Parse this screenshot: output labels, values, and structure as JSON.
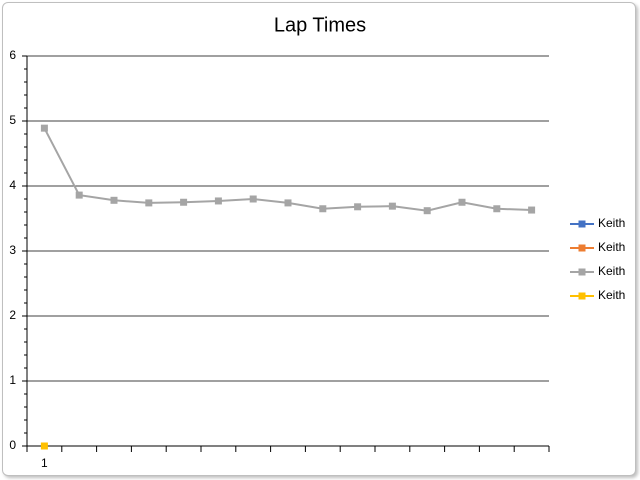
{
  "chart_data": {
    "type": "line",
    "title": "Lap Times",
    "categories": [
      "1",
      null,
      null,
      null,
      null,
      null,
      null,
      null,
      null,
      null,
      null,
      null,
      null,
      null,
      null
    ],
    "series": [
      {
        "name": "Keith",
        "color": "#4472c4",
        "values": [
          null,
          null,
          null,
          null,
          null,
          null,
          null,
          null,
          null,
          null,
          null,
          null,
          null,
          null,
          null
        ]
      },
      {
        "name": "Keith",
        "color": "#ed7d31",
        "values": [
          null,
          null,
          null,
          null,
          null,
          null,
          null,
          null,
          null,
          null,
          null,
          null,
          null,
          null,
          null
        ]
      },
      {
        "name": "Keith",
        "color": "#a5a5a5",
        "values": [
          4.89,
          3.86,
          3.78,
          3.74,
          3.75,
          3.77,
          3.8,
          3.74,
          3.65,
          3.68,
          3.69,
          3.62,
          3.75,
          3.65,
          3.63
        ]
      },
      {
        "name": "Keith",
        "color": "#ffc000",
        "values": [
          0,
          null,
          null,
          null,
          null,
          null,
          null,
          null,
          null,
          null,
          null,
          null,
          null,
          null,
          null
        ]
      }
    ],
    "ylim": [
      0,
      6
    ],
    "yticks": [
      0,
      1,
      2,
      3,
      4,
      5,
      6
    ],
    "grid": true,
    "legend": "right"
  }
}
